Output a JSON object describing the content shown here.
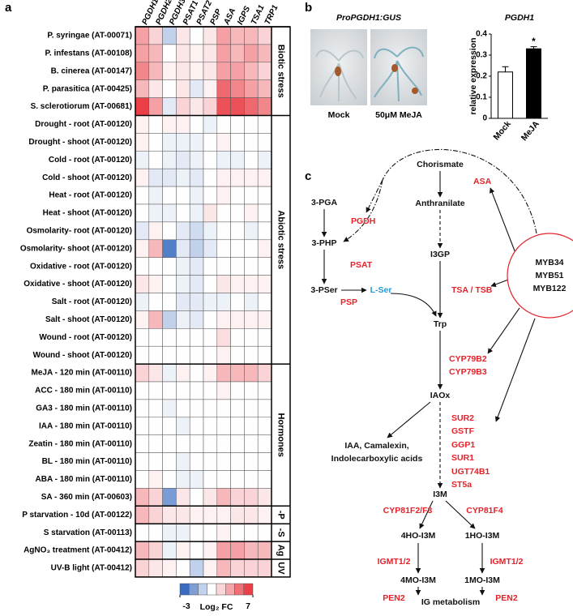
{
  "panels": [
    "a",
    "b",
    "c"
  ],
  "chart_data": [
    {
      "type": "heatmap",
      "columns": [
        "PGDH1",
        "PGDH2",
        "PGDH3",
        "PSAT1",
        "PSAT2",
        "PSP",
        "ASA",
        "IGPS",
        "TSA1",
        "TRP1"
      ],
      "groups": [
        {
          "label": "Biotic stress",
          "rows": [
            {
              "label": "P. syringae (AT-00071)",
              "values": [
                4.0,
                2.7,
                0.1,
                2.1,
                1.4,
                2.1,
                4.0,
                3.4,
                3.4,
                2.7
              ]
            },
            {
              "label": "P. infestans (AT-00108)",
              "values": [
                4.0,
                3.4,
                1.4,
                2.1,
                1.8,
                2.1,
                4.0,
                3.4,
                4.0,
                3.4
              ]
            },
            {
              "label": "B. cinerea (AT-00147)",
              "values": [
                4.6,
                3.4,
                1.8,
                2.1,
                1.8,
                2.1,
                4.0,
                4.0,
                3.4,
                2.7
              ]
            },
            {
              "label": "P. parasitica (AT-00425)",
              "values": [
                3.4,
                2.1,
                1.4,
                2.1,
                0.8,
                1.8,
                5.3,
                4.6,
                4.0,
                3.4
              ]
            },
            {
              "label": "S. sclerotiorum (AT-00681)",
              "values": [
                6.6,
                4.0,
                0.8,
                2.7,
                2.1,
                2.7,
                5.9,
                5.9,
                5.3,
                4.6
              ]
            }
          ]
        },
        {
          "label": "Abiotic stress",
          "rows": [
            {
              "label": "Drought - root (AT-00120)",
              "values": [
                1.8,
                1.4,
                1.8,
                1.8,
                1.4,
                1.0,
                1.4,
                1.4,
                1.4,
                1.4
              ]
            },
            {
              "label": "Drought - shoot (AT-00120)",
              "values": [
                1.8,
                1.4,
                1.0,
                1.0,
                1.0,
                1.4,
                1.8,
                1.4,
                1.4,
                1.4
              ]
            },
            {
              "label": "Cold - root (AT-00120)",
              "values": [
                1.0,
                1.4,
                1.0,
                0.8,
                1.0,
                1.4,
                1.0,
                1.0,
                1.4,
                1.0
              ]
            },
            {
              "label": "Cold - shoot (AT-00120)",
              "values": [
                1.8,
                0.8,
                0.8,
                1.0,
                0.8,
                1.4,
                1.8,
                1.8,
                1.8,
                1.8
              ]
            },
            {
              "label": "Heat - root (AT-00120)",
              "values": [
                1.4,
                1.0,
                1.4,
                1.4,
                1.0,
                1.4,
                1.8,
                1.4,
                1.4,
                1.4
              ]
            },
            {
              "label": "Heat - shoot (AT-00120)",
              "values": [
                1.4,
                1.0,
                1.0,
                1.4,
                1.0,
                2.1,
                1.4,
                1.4,
                1.8,
                1.4
              ]
            },
            {
              "label": "Osmolarity- root (AT-00120)",
              "values": [
                0.8,
                1.8,
                1.4,
                0.8,
                0.4,
                1.0,
                1.4,
                1.4,
                1.0,
                1.4
              ]
            },
            {
              "label": "Osmolarity- shoot (AT-00120)",
              "values": [
                1.8,
                3.4,
                -1.9,
                0.8,
                0.1,
                0.8,
                1.4,
                1.4,
                1.4,
                1.8
              ]
            },
            {
              "label": "Oxidative - root (AT-00120)",
              "values": [
                1.4,
                1.4,
                1.4,
                1.0,
                0.8,
                1.4,
                1.4,
                1.4,
                1.4,
                1.4
              ]
            },
            {
              "label": "Oxidative - shoot (AT-00120)",
              "values": [
                2.1,
                1.8,
                1.4,
                1.0,
                0.8,
                1.4,
                2.1,
                1.8,
                1.8,
                1.8
              ]
            },
            {
              "label": "Salt - root (AT-00120)",
              "values": [
                1.0,
                1.4,
                1.4,
                0.8,
                0.8,
                1.0,
                1.0,
                1.4,
                1.0,
                1.4
              ]
            },
            {
              "label": "Salt - shoot (AT-00120)",
              "values": [
                1.8,
                3.4,
                0.1,
                1.0,
                0.8,
                1.4,
                1.8,
                1.8,
                1.8,
                1.8
              ]
            },
            {
              "label": "Wound - root (AT-00120)",
              "values": [
                1.4,
                1.4,
                1.4,
                1.4,
                1.4,
                1.4,
                2.4,
                1.4,
                1.4,
                1.4
              ]
            },
            {
              "label": "Wound - shoot (AT-00120)",
              "values": [
                1.4,
                1.4,
                1.4,
                1.4,
                1.4,
                1.4,
                1.8,
                1.4,
                1.4,
                1.4
              ]
            }
          ]
        },
        {
          "label": "Hormones",
          "rows": [
            {
              "label": "MeJA - 120 min (AT-00110)",
              "values": [
                2.7,
                2.1,
                1.0,
                1.8,
                1.4,
                1.8,
                3.4,
                3.4,
                3.4,
                2.7
              ]
            },
            {
              "label": "ACC - 180 min (AT-00110)",
              "values": [
                1.4,
                1.4,
                1.4,
                1.4,
                1.4,
                1.4,
                1.8,
                1.4,
                1.4,
                1.4
              ]
            },
            {
              "label": "GA3 - 180 min (AT-00110)",
              "values": [
                1.4,
                1.4,
                1.0,
                1.4,
                1.4,
                1.4,
                1.4,
                1.4,
                1.4,
                1.4
              ]
            },
            {
              "label": "IAA - 180 min (AT-00110)",
              "values": [
                1.4,
                1.4,
                1.4,
                1.0,
                1.4,
                1.4,
                1.4,
                1.4,
                1.4,
                1.4
              ]
            },
            {
              "label": "Zeatin - 180 min (AT-00110)",
              "values": [
                1.4,
                1.4,
                1.4,
                1.4,
                1.4,
                1.4,
                1.4,
                1.4,
                1.4,
                1.4
              ]
            },
            {
              "label": "BL - 180 min (AT-00110)",
              "values": [
                1.4,
                1.4,
                1.4,
                1.0,
                1.4,
                1.4,
                1.4,
                1.4,
                1.4,
                1.4
              ]
            },
            {
              "label": "ABA - 180 min (AT-00110)",
              "values": [
                1.4,
                1.8,
                1.4,
                1.0,
                1.0,
                1.4,
                1.4,
                1.4,
                1.4,
                1.4
              ]
            },
            {
              "label": "SA - 360 min (AT-00603)",
              "values": [
                3.4,
                2.7,
                -1.2,
                2.1,
                1.4,
                2.1,
                3.4,
                2.7,
                2.7,
                2.1
              ]
            }
          ]
        },
        {
          "label": "-P",
          "rows": [
            {
              "label": "P starvation - 10d (AT-00122)",
              "values": [
                3.4,
                2.7,
                2.1,
                2.1,
                1.8,
                1.8,
                1.8,
                2.1,
                2.1,
                1.8
              ]
            }
          ]
        },
        {
          "label": "-S",
          "rows": [
            {
              "label": "S starvation (AT-00113)",
              "values": [
                1.4,
                1.4,
                1.0,
                1.0,
                1.4,
                1.4,
                1.8,
                1.4,
                1.4,
                1.4
              ]
            }
          ]
        },
        {
          "label": "Ag",
          "rows": [
            {
              "label": "AgNO₃ treatment (AT-00412)",
              "values": [
                3.4,
                2.7,
                1.0,
                1.8,
                1.4,
                1.8,
                4.0,
                4.0,
                3.4,
                3.4
              ]
            }
          ]
        },
        {
          "label": "UV",
          "rows": [
            {
              "label": "UV-B light (AT-00412)",
              "values": [
                2.7,
                2.1,
                1.8,
                1.4,
                0.1,
                1.8,
                3.4,
                2.7,
                2.7,
                2.7
              ]
            }
          ]
        }
      ],
      "clim": [
        -3,
        7
      ],
      "colormap": [
        "#3a6bc1",
        "#7d9fd6",
        "#c2d2ec",
        "#ffffff",
        "#f9d6d8",
        "#f4a5a9",
        "#ef6f75",
        "#ea3f47"
      ],
      "colorbar": {
        "ticks": [
          -3,
          7
        ],
        "label": "Log₂ FC"
      }
    },
    {
      "type": "bar",
      "title": "PGDH1",
      "y_label": "relative expression",
      "categories": [
        "Mock",
        "MeJA"
      ],
      "values": [
        0.22,
        0.33
      ],
      "errors": [
        0.025,
        0.01
      ],
      "colors": [
        "#ffffff",
        "#000000"
      ],
      "annotations": [
        null,
        "*"
      ],
      "ylim": [
        0,
        0.4
      ],
      "yticks": [
        0,
        0.1,
        0.2,
        0.3,
        0.4
      ]
    }
  ],
  "gus": {
    "title": "ProPGDH1:GUS",
    "captions": [
      "Mock",
      "50μM MeJA"
    ]
  },
  "pathway": {
    "metabolites": [
      "3-PGA",
      "3-PHP",
      "3-PSer",
      "Chorismate",
      "Anthranilate",
      "I3GP",
      "Trp",
      "IAOx",
      "I3M",
      "4HO-I3M",
      "1HO-I3M",
      "4MO-I3M",
      "1MO-I3M",
      "IG metabolism"
    ],
    "side_products": [
      "IAA, Camalexin,",
      "Indolecarboxylic acids"
    ],
    "serine": "L-Ser",
    "regulators": [
      "MYB34",
      "MYB51",
      "MYB122"
    ],
    "enzymes": [
      "PGDH",
      "PSAT",
      "PSP",
      "ASA",
      "TSA / TSB",
      "CYP79B2",
      "CYP79B3",
      "SUR2",
      "GSTF",
      "GGP1",
      "SUR1",
      "UGT74B1",
      "ST5a",
      "CYP81F2/F3",
      "CYP81F4",
      "IGMT1/2",
      "IGMT1/2",
      "PEN2",
      "PEN2"
    ]
  }
}
